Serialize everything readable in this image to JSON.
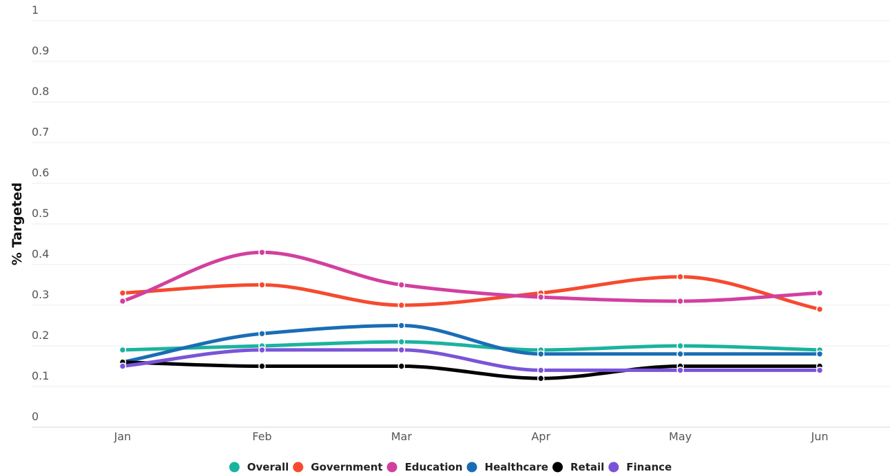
{
  "chart_data": {
    "type": "line",
    "title": "",
    "xlabel": "",
    "ylabel": "% Targeted",
    "categories": [
      "Jan",
      "Feb",
      "Mar",
      "Apr",
      "May",
      "Jun"
    ],
    "ylim": [
      0,
      1
    ],
    "yticks": [
      "0",
      "0.1",
      "0.2",
      "0.3",
      "0.4",
      "0.5",
      "0.6",
      "0.7",
      "0.8",
      "0.9",
      "1"
    ],
    "grid": true,
    "legend_position": "bottom-center",
    "smooth": true,
    "series": [
      {
        "name": "Overall",
        "color": "#1ab39f",
        "values": [
          0.19,
          0.2,
          0.21,
          0.19,
          0.2,
          0.19
        ]
      },
      {
        "name": "Government",
        "color": "#f64a2f",
        "values": [
          0.33,
          0.35,
          0.3,
          0.33,
          0.37,
          0.29
        ]
      },
      {
        "name": "Education",
        "color": "#d2409e",
        "values": [
          0.31,
          0.43,
          0.35,
          0.32,
          0.31,
          0.33
        ]
      },
      {
        "name": "Healthcare",
        "color": "#1a6db5",
        "values": [
          0.16,
          0.23,
          0.25,
          0.18,
          0.18,
          0.18
        ]
      },
      {
        "name": "Retail",
        "color": "#000000",
        "values": [
          0.16,
          0.15,
          0.15,
          0.12,
          0.15,
          0.15
        ]
      },
      {
        "name": "Finance",
        "color": "#7a54d8",
        "values": [
          0.15,
          0.19,
          0.19,
          0.14,
          0.14,
          0.14
        ]
      }
    ]
  }
}
